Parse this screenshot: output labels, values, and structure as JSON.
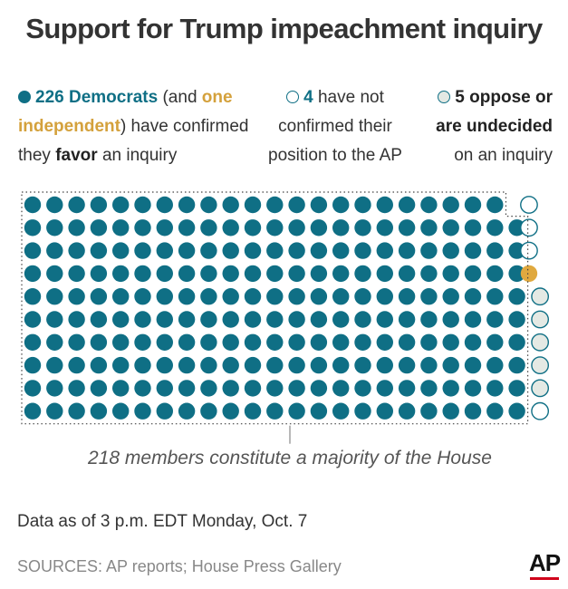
{
  "title": "Support for Trump impeachment inquiry",
  "legend": {
    "favor": {
      "count": "226 Democrats",
      "open": " (and ",
      "one": "one",
      "independent": "independent",
      "close": ") have confirmed",
      "line3a": "they ",
      "favor_word": "favor",
      "line3b": " an inquiry"
    },
    "not_confirmed": {
      "count": "4",
      "rest1": " have not",
      "line2": "confirmed their",
      "line3": "position to the AP"
    },
    "oppose": {
      "count": "5",
      "word": " oppose or",
      "line2": "are undecided",
      "line3": "on an inquiry"
    }
  },
  "colors": {
    "favor": "#0f6f85",
    "independent": "#e0a93f",
    "not_confirmed_stroke": "#0f6f85",
    "oppose_fill": "#e4e9e4",
    "text": "#333333",
    "ap_red": "#d0021b"
  },
  "chart_data": {
    "type": "waffle",
    "rows": 10,
    "columns": 24,
    "categories": [
      "Favor inquiry (Democrats)",
      "Favor inquiry (independent)",
      "Have not confirmed position",
      "Oppose or undecided"
    ],
    "values": [
      226,
      1,
      4,
      5
    ],
    "majority_threshold": 218,
    "annotation": "218 members constitute a majority of the House"
  },
  "note": "Data as of 3 p.m. EDT Monday, Oct. 7",
  "sources": "SOURCES: AP reports; House Press Gallery",
  "logo": "AP"
}
